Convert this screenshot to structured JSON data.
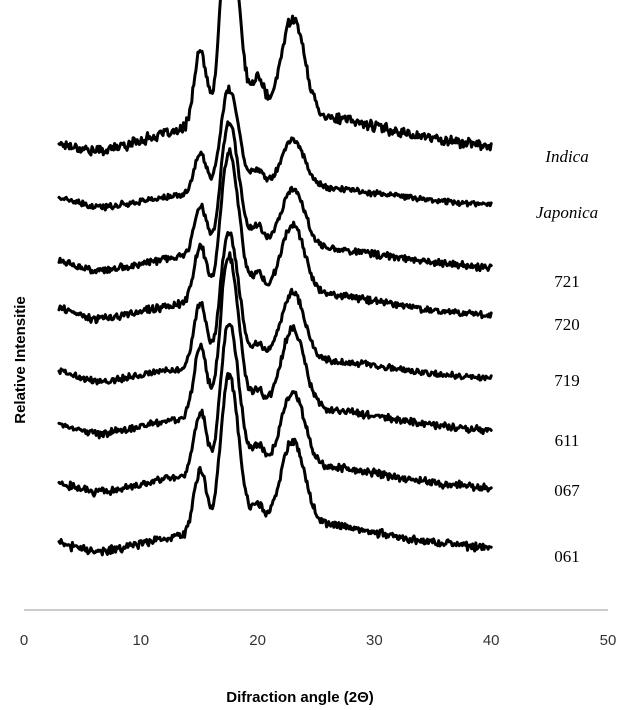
{
  "chart_data": {
    "type": "line",
    "title": "",
    "xlabel": "Difraction angle (2Θ)",
    "ylabel": "Relative Intensitie",
    "xlim": [
      0,
      50
    ],
    "x_ticks": [
      "0",
      "10",
      "20",
      "30",
      "40",
      "50"
    ],
    "grid": false,
    "legend": "series labels at right of each trace",
    "x_range_of_traces": [
      3,
      40
    ],
    "peaks_2theta": [
      15.1,
      17.2,
      18.0,
      20.0,
      23.0
    ],
    "series": [
      {
        "name": "Indica",
        "italic": true,
        "heights": [
          0.55,
          0.9,
          1.0,
          0.3,
          0.72
        ]
      },
      {
        "name": "Japonica",
        "italic": true,
        "heights": [
          0.5,
          0.75,
          0.85,
          0.25,
          0.6
        ]
      },
      {
        "name": "721",
        "italic": false,
        "heights": [
          0.52,
          0.78,
          0.9,
          0.25,
          0.62
        ]
      },
      {
        "name": "720",
        "italic": false,
        "heights": [
          0.55,
          0.85,
          0.95,
          0.22,
          0.68
        ]
      },
      {
        "name": "719",
        "italic": false,
        "heights": [
          0.75,
          0.95,
          1.0,
          0.2,
          0.8
        ]
      },
      {
        "name": "611",
        "italic": false,
        "heights": [
          0.7,
          0.95,
          1.0,
          0.2,
          0.78
        ]
      },
      {
        "name": "067",
        "italic": false,
        "heights": [
          0.6,
          0.85,
          0.95,
          0.22,
          0.72
        ]
      },
      {
        "name": "061",
        "italic": false,
        "heights": [
          0.55,
          0.82,
          0.9,
          0.18,
          0.75
        ]
      }
    ]
  }
}
